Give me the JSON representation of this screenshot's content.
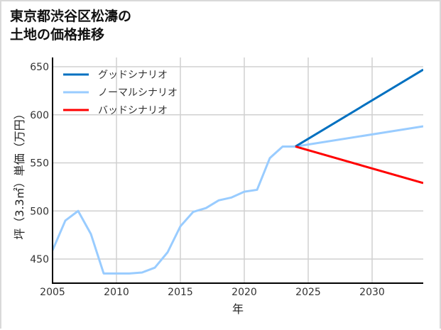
{
  "title": {
    "line1": "東京都渋谷区松濤の",
    "line2": "土地の価格推移"
  },
  "chart_data": {
    "type": "line",
    "title": "東京都渋谷区松濤の土地の価格推移",
    "xlabel": "年",
    "ylabel": "坪（3.3㎡）単価（万円）",
    "xlim": [
      2005,
      2034
    ],
    "ylim": [
      423,
      658
    ],
    "xticks": [
      2005,
      2010,
      2015,
      2020,
      2025,
      2030
    ],
    "yticks": [
      450,
      500,
      550,
      600,
      650
    ],
    "grid": true,
    "legend_position": "upper left",
    "series": [
      {
        "name": "グッドシナリオ",
        "color": "#0070c0",
        "x": [
          2024,
          2034
        ],
        "values": [
          567,
          647
        ]
      },
      {
        "name": "ノーマルシナリオ",
        "color": "#99ccff",
        "x": [
          2005,
          2006,
          2007,
          2008,
          2009,
          2010,
          2011,
          2012,
          2013,
          2014,
          2015,
          2016,
          2017,
          2018,
          2019,
          2020,
          2021,
          2022,
          2023,
          2024,
          2034
        ],
        "values": [
          459,
          490,
          500,
          476,
          435,
          435,
          435,
          436,
          441,
          457,
          484,
          499,
          503,
          511,
          514,
          520,
          522,
          555,
          567,
          567,
          588
        ]
      },
      {
        "name": "バッドシナリオ",
        "color": "#ff0000",
        "x": [
          2024,
          2034
        ],
        "values": [
          567,
          529
        ]
      }
    ]
  }
}
